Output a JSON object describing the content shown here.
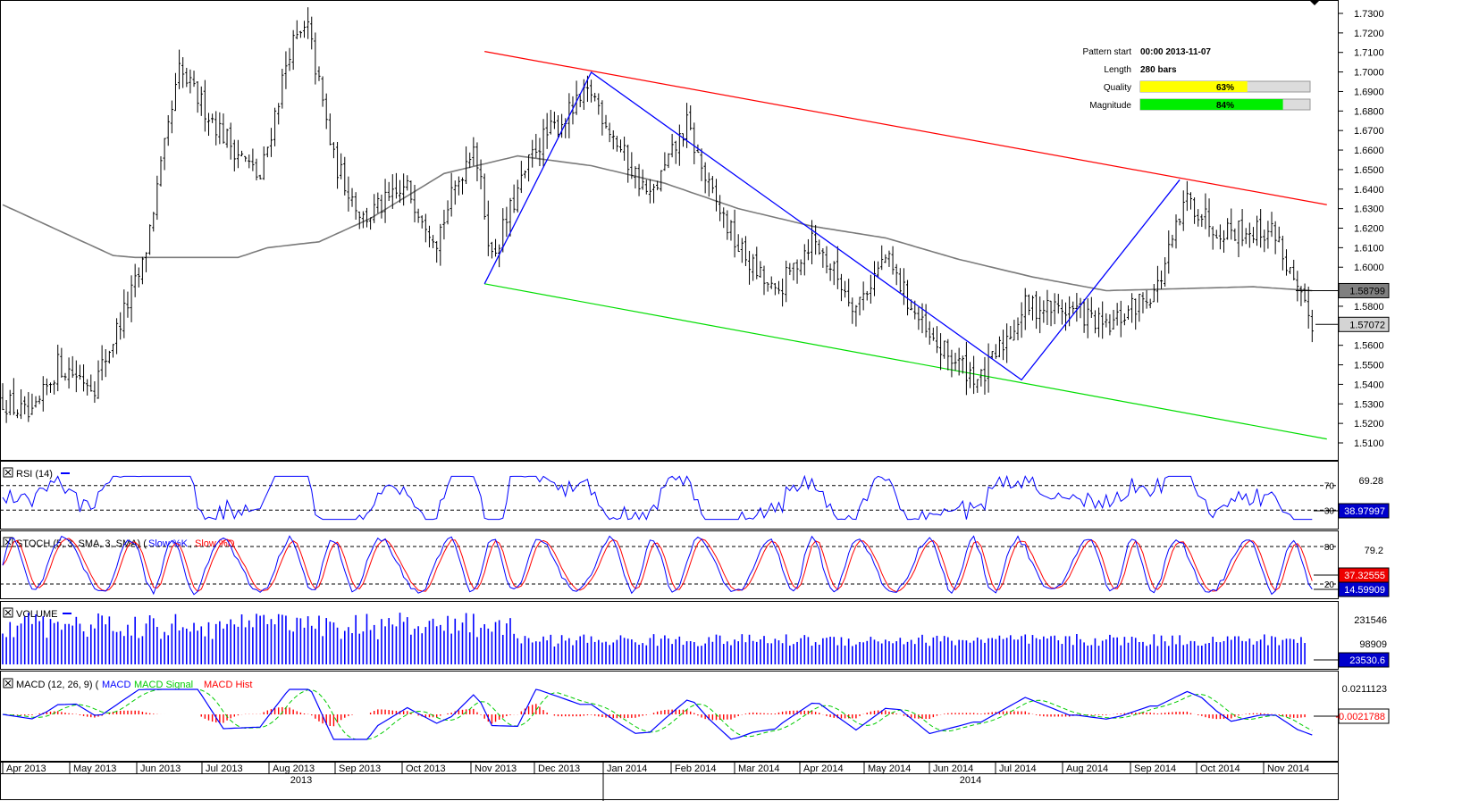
{
  "chart_data": {
    "type": "bar",
    "price_axis": {
      "ylim": [
        1.505,
        1.733
      ],
      "ticks": [
        "1.7300",
        "1.7200",
        "1.7100",
        "1.7000",
        "1.6900",
        "1.6800",
        "1.6700",
        "1.6600",
        "1.6500",
        "1.6400",
        "1.6300",
        "1.6200",
        "1.6100",
        "1.6000",
        "1.5900",
        "1.5800",
        "1.5700",
        "1.5600",
        "1.5500",
        "1.5400",
        "1.5300",
        "1.5200",
        "1.5100"
      ],
      "labels": {
        "ma": "1.58799",
        "last": "1.57072"
      },
      "ma_value": 1.588,
      "last_value": 1.5707
    },
    "pattern_info": [
      {
        "key": "Pattern start",
        "value": "00:00 2013-11-07"
      },
      {
        "key": "Length",
        "value": "280 bars"
      },
      {
        "key": "Quality",
        "value": "63%",
        "fill": 0.63,
        "color": "#ffff00"
      },
      {
        "key": "Magnitude",
        "value": "84%",
        "fill": 0.84,
        "color": "#00ee00"
      }
    ],
    "months": [
      "Apr 2013",
      "May 2013",
      "Jun 2013",
      "Jul 2013",
      "Aug 2013",
      "Sep 2013",
      "Oct 2013",
      "Nov 2013",
      "Dec 2013",
      "Jan 2014",
      "Feb 2014",
      "Mar 2014",
      "Apr 2014",
      "May 2014",
      "Jun 2014",
      "Jul 2014",
      "Aug 2014",
      "Sep 2014",
      "Oct 2014",
      "Nov 2014"
    ],
    "years": [
      "2013",
      "2014"
    ],
    "bar_count": 280,
    "price_path": [
      [
        0,
        1.532
      ],
      [
        8,
        1.522
      ],
      [
        15,
        1.55
      ],
      [
        25,
        1.54
      ],
      [
        38,
        1.6
      ],
      [
        48,
        1.7
      ],
      [
        60,
        1.668
      ],
      [
        70,
        1.645
      ],
      [
        78,
        1.712
      ],
      [
        83,
        1.722
      ],
      [
        90,
        1.655
      ],
      [
        98,
        1.625
      ],
      [
        110,
        1.64
      ],
      [
        118,
        1.615
      ],
      [
        128,
        1.665
      ],
      [
        133,
        1.605
      ],
      [
        145,
        1.662
      ],
      [
        160,
        1.69
      ],
      [
        168,
        1.66
      ],
      [
        176,
        1.635
      ],
      [
        186,
        1.673
      ],
      [
        192,
        1.64
      ],
      [
        200,
        1.61
      ],
      [
        210,
        1.585
      ],
      [
        220,
        1.615
      ],
      [
        232,
        1.58
      ],
      [
        240,
        1.605
      ],
      [
        252,
        1.562
      ],
      [
        266,
        1.542
      ],
      [
        278,
        1.58
      ],
      [
        292,
        1.578
      ],
      [
        300,
        1.568
      ],
      [
        314,
        1.59
      ],
      [
        322,
        1.635
      ],
      [
        330,
        1.62
      ],
      [
        346,
        1.618
      ],
      [
        352,
        1.585
      ],
      [
        356,
        1.572
      ]
    ],
    "ma_path": [
      [
        0,
        1.632
      ],
      [
        30,
        1.606
      ],
      [
        36,
        1.605
      ],
      [
        64,
        1.605
      ],
      [
        72,
        1.61
      ],
      [
        86,
        1.613
      ],
      [
        100,
        1.625
      ],
      [
        120,
        1.648
      ],
      [
        140,
        1.657
      ],
      [
        160,
        1.652
      ],
      [
        180,
        1.643
      ],
      [
        200,
        1.63
      ],
      [
        220,
        1.621
      ],
      [
        240,
        1.615
      ],
      [
        260,
        1.604
      ],
      [
        280,
        1.595
      ],
      [
        300,
        1.588
      ],
      [
        320,
        1.589
      ],
      [
        340,
        1.59
      ],
      [
        356,
        1.588
      ]
    ],
    "channel_upper": [
      [
        131,
        1.7105
      ],
      [
        360,
        1.632
      ]
    ],
    "channel_lower": [
      [
        131,
        1.5915
      ],
      [
        360,
        1.512
      ]
    ],
    "zigzag": [
      [
        131,
        1.5915
      ],
      [
        160,
        1.6998
      ],
      [
        277,
        1.5423
      ],
      [
        320,
        1.6448
      ]
    ],
    "panels": [
      {
        "key": "rsi",
        "title": "RSI (14)",
        "levels": [
          "70",
          "30"
        ],
        "right_labels": [
          "69.28"
        ],
        "value": "38.97997"
      },
      {
        "key": "stoch",
        "title": "STOCH (5, 3, SMA, 3, SMA)",
        "legend": [
          "Slow %K",
          "Slow %D"
        ],
        "levels": [
          "80",
          "20"
        ],
        "right_labels": [
          "79.2"
        ],
        "value_d": "37.32555",
        "value_k": "14.59909"
      },
      {
        "key": "volume",
        "title": "VOLUME",
        "right_labels": [
          "231546",
          "98909"
        ],
        "value": "23530.6"
      },
      {
        "key": "macd",
        "title": "MACD (12, 26, 9)",
        "legend": [
          "MACD",
          "MACD Signal",
          "MACD Hist"
        ],
        "right_labels": [
          "0.0211123"
        ],
        "value": "-0.0021788"
      }
    ],
    "colors": {
      "bars": "#000000",
      "ma": "#7a7a7a",
      "upper": "#ff0000",
      "lower": "#00dd00",
      "zigzag": "#0000ff",
      "rsi": "#0000ff",
      "stoch_k": "#0000ff",
      "stoch_d": "#ff0000",
      "volume": "#0000ff",
      "macd": "#0000ff",
      "macd_signal": "#00cc00",
      "macd_hist": "#ff0000"
    }
  }
}
